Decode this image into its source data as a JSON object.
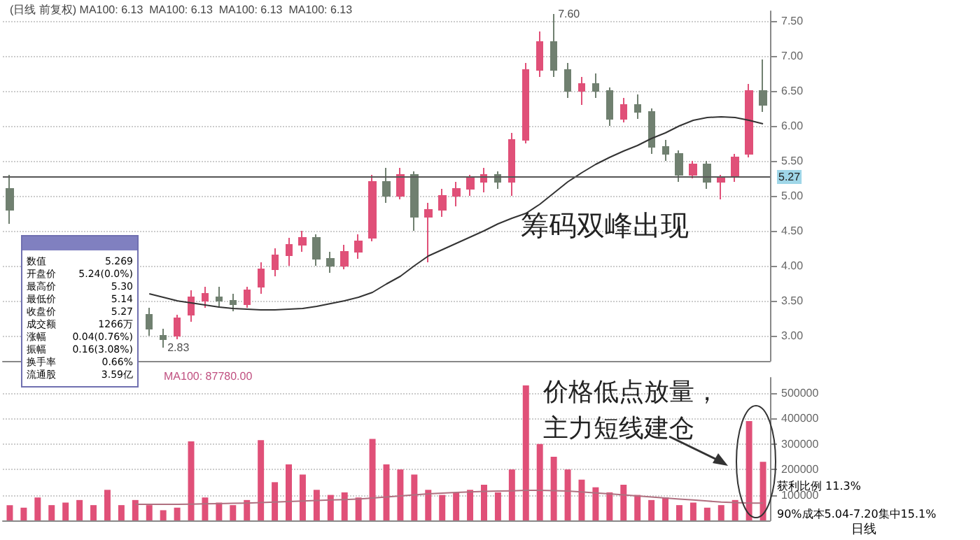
{
  "chart_data": [
    {
      "type": "candlestick",
      "title": "(日线 前复权) MA100: 6.13  MA100: 6.13  MA100: 6.13  MA100: 6.13",
      "categories": [
        null,
        null,
        null,
        null,
        null,
        null,
        null,
        null,
        null,
        null,
        null,
        null,
        null,
        null,
        null,
        null,
        null,
        null,
        null,
        null,
        null,
        null,
        null,
        null,
        null,
        null,
        null,
        null,
        null,
        null,
        null,
        null,
        null,
        null,
        null,
        null,
        null,
        null,
        null,
        null,
        null,
        null,
        null,
        null,
        null,
        null,
        null,
        null,
        null,
        null,
        null,
        null,
        null,
        null,
        null
      ],
      "ohlc": [
        [
          5.1,
          5.3,
          4.6,
          4.8
        ],
        null,
        null,
        null,
        null,
        null,
        null,
        null,
        null,
        null,
        [
          3.3,
          3.4,
          3.0,
          3.1
        ],
        [
          3.0,
          3.1,
          2.83,
          2.95
        ],
        [
          3.0,
          3.3,
          2.95,
          3.25
        ],
        [
          3.3,
          3.65,
          3.2,
          3.55
        ],
        [
          3.5,
          3.7,
          3.4,
          3.6
        ],
        [
          3.55,
          3.7,
          3.4,
          3.5
        ],
        [
          3.5,
          3.6,
          3.35,
          3.45
        ],
        [
          3.45,
          3.7,
          3.4,
          3.65
        ],
        [
          3.7,
          4.05,
          3.6,
          3.95
        ],
        [
          3.95,
          4.25,
          3.85,
          4.15
        ],
        [
          4.15,
          4.4,
          4.0,
          4.3
        ],
        [
          4.3,
          4.5,
          4.2,
          4.4
        ],
        [
          4.4,
          4.45,
          4.0,
          4.1
        ],
        [
          4.1,
          4.2,
          3.9,
          4.0
        ],
        [
          4.0,
          4.3,
          3.95,
          4.2
        ],
        [
          4.2,
          4.45,
          4.1,
          4.35
        ],
        [
          4.4,
          5.3,
          4.35,
          5.2
        ],
        [
          5.2,
          5.4,
          4.9,
          5.0
        ],
        [
          5.0,
          5.4,
          4.95,
          5.3
        ],
        [
          5.3,
          5.35,
          4.5,
          4.7
        ],
        [
          4.7,
          4.9,
          4.05,
          4.8
        ],
        [
          4.8,
          5.1,
          4.7,
          5.0
        ],
        [
          5.0,
          5.2,
          4.85,
          5.1
        ],
        [
          5.1,
          5.3,
          5.0,
          5.25
        ],
        [
          5.2,
          5.4,
          5.05,
          5.3
        ],
        [
          5.3,
          5.35,
          5.1,
          5.2
        ],
        [
          5.2,
          5.9,
          5.0,
          5.8
        ],
        [
          5.8,
          6.9,
          5.75,
          6.8
        ],
        [
          6.8,
          7.35,
          6.7,
          7.2
        ],
        [
          7.2,
          7.6,
          6.7,
          6.8
        ],
        [
          6.8,
          6.9,
          6.4,
          6.5
        ],
        [
          6.5,
          6.7,
          6.3,
          6.6
        ],
        [
          6.6,
          6.75,
          6.4,
          6.5
        ],
        [
          6.5,
          6.55,
          6.0,
          6.1
        ],
        [
          6.1,
          6.4,
          6.05,
          6.3
        ],
        [
          6.3,
          6.45,
          6.1,
          6.2
        ],
        [
          6.2,
          6.25,
          5.6,
          5.7
        ],
        [
          5.7,
          5.8,
          5.5,
          5.6
        ],
        [
          5.6,
          5.65,
          5.2,
          5.3
        ],
        [
          5.3,
          5.5,
          5.25,
          5.45
        ],
        [
          5.45,
          5.5,
          5.1,
          5.2
        ],
        [
          5.2,
          5.3,
          4.95,
          5.27
        ],
        [
          5.27,
          5.6,
          5.2,
          5.55
        ],
        [
          5.6,
          6.6,
          5.55,
          6.5
        ],
        [
          6.5,
          6.95,
          6.2,
          6.3
        ]
      ],
      "colors": [
        "#708070",
        null,
        null,
        null,
        null,
        null,
        null,
        null,
        null,
        null,
        "#708070",
        "#708070",
        "#e05078",
        "#e05078",
        "#e05078",
        "#708070",
        "#708070",
        "#e05078",
        "#e05078",
        "#e05078",
        "#e05078",
        "#e05078",
        "#708070",
        "#708070",
        "#e05078",
        "#e05078",
        "#e05078",
        "#708070",
        "#e05078",
        "#708070",
        "#e05078",
        "#e05078",
        "#e05078",
        "#e05078",
        "#e05078",
        "#708070",
        "#e05078",
        "#e05078",
        "#e05078",
        "#708070",
        "#708070",
        "#e05078",
        "#708070",
        "#708070",
        "#e05078",
        "#708070",
        "#708070",
        "#708070",
        "#708070",
        "#e05078",
        "#708070",
        "#e05078",
        "#e05078",
        "#e05078",
        "#708070"
      ],
      "series": [
        {
          "type": "line",
          "color": "#333333",
          "values": [
            null,
            null,
            null,
            null,
            null,
            null,
            null,
            null,
            null,
            null,
            3.6,
            3.55,
            3.5,
            3.47,
            3.44,
            3.41,
            3.39,
            3.38,
            3.37,
            3.37,
            3.38,
            3.39,
            3.42,
            3.46,
            3.5,
            3.55,
            3.62,
            3.74,
            3.85,
            4.0,
            4.14,
            4.23,
            4.32,
            4.41,
            4.5,
            4.6,
            4.68,
            4.75,
            4.88,
            5.04,
            5.2,
            5.33,
            5.45,
            5.55,
            5.64,
            5.72,
            5.82,
            5.9,
            6.0,
            6.08,
            6.12,
            6.13,
            6.12,
            6.08,
            6.03
          ]
        }
      ],
      "ylim": [
        2.64,
        7.64
      ],
      "yticks": [
        {
          "value": 3,
          "label": "3.00"
        },
        {
          "value": 3.5,
          "label": "3.50"
        },
        {
          "value": 4,
          "label": "4.00"
        },
        {
          "value": 4.5,
          "label": "4.50"
        },
        {
          "value": 5,
          "label": "5.00"
        },
        {
          "value": 5.5,
          "label": "5.50"
        },
        {
          "value": 6,
          "label": "6.00"
        },
        {
          "value": 6.5,
          "label": "6.50"
        },
        {
          "value": 7,
          "label": "7.00"
        },
        {
          "value": 7.5,
          "label": "7.50"
        }
      ],
      "grid": "y",
      "tick_labels": "y",
      "marker": "none",
      "ref_lines": [
        {
          "axis": "y",
          "value": 5.27,
          "label": "5.27",
          "color": "#555555"
        }
      ],
      "annotations": [
        "7.60",
        "2.83",
        "筹码双峰出现",
        "数值 5.269",
        "开盘价 5.24(0.0%)",
        "最高价 5.30",
        "最低价 5.14",
        "收盘价 5.27",
        "成交额 1266万",
        "涨幅 0.04(0.76%)",
        "振幅 0.16(3.08%)",
        "换手率 0.66%",
        "流通股 3.59亿"
      ]
    },
    {
      "type": "bar",
      "title": "MA100: 87780.00",
      "categories": [
        null,
        null,
        null,
        null,
        null,
        null,
        null,
        null,
        null,
        null,
        null,
        null,
        null,
        null,
        null,
        null,
        null,
        null,
        null,
        null,
        null,
        null,
        null,
        null,
        null,
        null,
        null,
        null,
        null,
        null,
        null,
        null,
        null,
        null,
        null,
        null,
        null,
        null,
        null,
        null,
        null,
        null,
        null,
        null,
        null,
        null,
        null,
        null,
        null,
        null,
        null,
        null,
        null,
        null,
        null
      ],
      "series": [
        {
          "color": "#e05078",
          "values": [
            60000,
            50000,
            90000,
            60000,
            70000,
            80000,
            60000,
            120000,
            60000,
            80000,
            60000,
            40000,
            50000,
            310000,
            90000,
            70000,
            60000,
            80000,
            315000,
            150000,
            220000,
            180000,
            120000,
            100000,
            110000,
            90000,
            320000,
            220000,
            200000,
            180000,
            120000,
            100000,
            110000,
            120000,
            140000,
            110000,
            200000,
            530000,
            300000,
            250000,
            200000,
            160000,
            130000,
            110000,
            140000,
            100000,
            80000,
            90000,
            60000,
            70000,
            50000,
            60000,
            80000,
            390000,
            230000
          ]
        },
        {
          "type": "line",
          "color": "#b07080",
          "values": [
            null,
            null,
            null,
            null,
            null,
            null,
            null,
            null,
            null,
            63000,
            63000,
            63000,
            63000,
            64000,
            65000,
            66000,
            67000,
            68000,
            70000,
            72000,
            74000,
            76000,
            78000,
            80000,
            82000,
            84000,
            88000,
            92000,
            96000,
            100000,
            104000,
            107000,
            110000,
            112000,
            114000,
            115000,
            116000,
            118000,
            118000,
            117000,
            115000,
            112000,
            108000,
            104000,
            100000,
            96000,
            92000,
            88000,
            84000,
            80000,
            76000,
            72000,
            70000,
            68000,
            68000
          ]
        }
      ],
      "ylim": [
        0,
        560000
      ],
      "yticks": [
        100000,
        200000,
        300000,
        400000,
        500000
      ],
      "grid": "y",
      "tick_labels": "y",
      "marker": "none",
      "annotations": [
        "价格低点放量，主力短线建仓",
        "日线",
        "获利比例 11.3%",
        "90%成本5.04-7.20集中15.1%"
      ]
    }
  ]
}
